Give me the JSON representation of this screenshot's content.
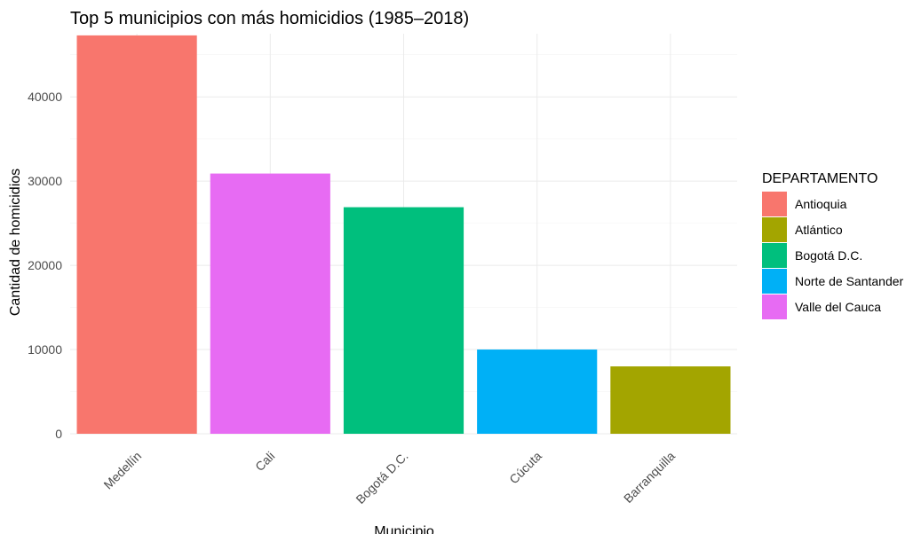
{
  "chart_data": {
    "type": "bar",
    "title": "Top 5 municipios con más homicidios (1985–2018)",
    "xlabel": "Municipio",
    "ylabel": "Cantidad de homicidios",
    "ylim": [
      0,
      47500
    ],
    "yticks": [
      0,
      10000,
      20000,
      30000,
      40000
    ],
    "grid": true,
    "legend": {
      "title": "DEPARTAMENTO",
      "placement": "right",
      "entries": [
        {
          "label": "Antioquia",
          "color": "#F8766D"
        },
        {
          "label": "Atlántico",
          "color": "#A3A500"
        },
        {
          "label": "Bogotá D.C.",
          "color": "#00BF7D"
        },
        {
          "label": "Norte de Santander",
          "color": "#00B0F6"
        },
        {
          "label": "Valle del Cauca",
          "color": "#E76BF3"
        }
      ]
    },
    "categories": [
      "Medellín",
      "Cali",
      "Bogotá D.C.",
      "Cúcuta",
      "Barranquilla"
    ],
    "values": [
      47300,
      30900,
      26900,
      10000,
      8000
    ],
    "bar_colors": [
      "#F8766D",
      "#E76BF3",
      "#00BF7D",
      "#00B0F6",
      "#A3A500"
    ]
  }
}
